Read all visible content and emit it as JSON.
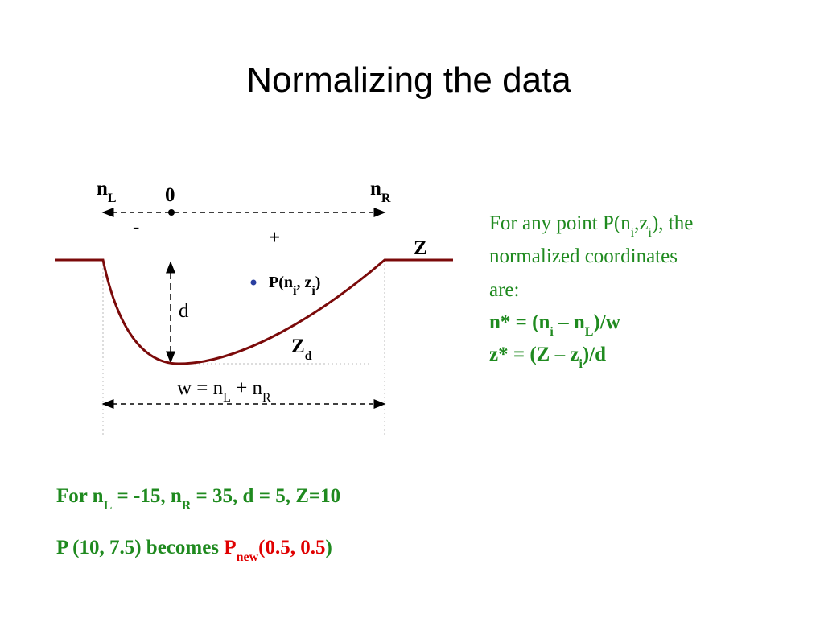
{
  "title": "Normalizing the data",
  "diagram": {
    "nL": [
      "n",
      "L"
    ],
    "zero": "0",
    "nR": [
      "n",
      "R"
    ],
    "minus": "-",
    "plus": "+",
    "Z": "Z",
    "point": [
      "P(n",
      "i",
      ", z",
      "i",
      ")"
    ],
    "d": "d",
    "Zd": [
      "Z",
      "d"
    ],
    "width": [
      "w = n",
      "L",
      " + n",
      "R"
    ]
  },
  "description": {
    "lines": [
      [
        "For any point P(n",
        "i",
        ",z",
        "i",
        "), the"
      ],
      [
        "normalized coordinates"
      ],
      [
        "are:"
      ],
      [
        "n* = (n",
        "i",
        " – n",
        "L",
        ")/w"
      ],
      [
        "z* = (Z – z",
        "i",
        ")/d"
      ]
    ]
  },
  "example": {
    "lines": [
      [
        "For n",
        "L",
        " = -15, n",
        "R",
        " = 35, d = 5, Z=10"
      ],
      [
        "P (10, 7.5) becomes ",
        "P",
        "new",
        "(0.5, 0.5",
        ")"
      ]
    ]
  }
}
